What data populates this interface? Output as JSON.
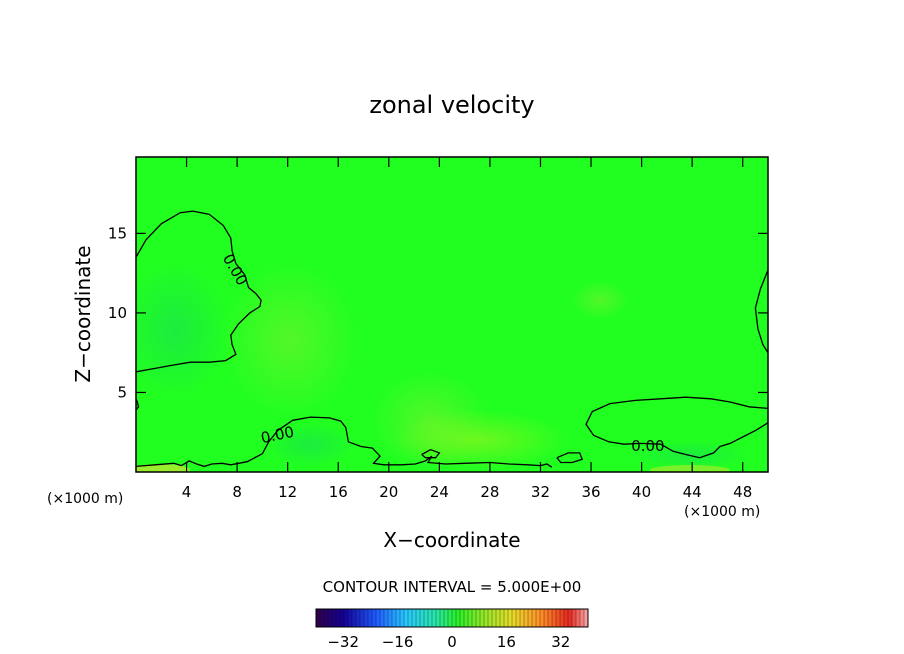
{
  "chart_data": {
    "type": "heatmap",
    "title": "zonal velocity",
    "xlabel": "X−coordinate",
    "ylabel": "Z−coordinate",
    "x_unit_left": "(×1000 m)",
    "x_unit_right": "(×1000 m)",
    "xlim": [
      0,
      50
    ],
    "ylim": [
      0,
      19.8
    ],
    "x_ticks": [
      4,
      8,
      12,
      16,
      20,
      24,
      28,
      32,
      36,
      40,
      44,
      48
    ],
    "y_ticks": [
      5,
      10,
      15
    ],
    "contour_interval_text": "CONTOUR INTERVAL = 5.000E+00",
    "contour_interval": 5.0,
    "colorbar": {
      "min": -40,
      "max": 40,
      "ticks": [
        -32,
        -16,
        0,
        16,
        32
      ],
      "tick_labels": [
        "−32",
        "−16",
        "0",
        "16",
        "32"
      ]
    },
    "background_color": "#20ff20",
    "contour_labels": [
      {
        "text": "0.00",
        "x": 7.8,
        "y": 12.7,
        "rotate": 60
      },
      {
        "text": "0.00",
        "x": 11.2,
        "y": 2.3,
        "rotate": -12
      },
      {
        "text": "0.00",
        "x": 40.5,
        "y": 1.6,
        "rotate": 0
      }
    ],
    "zero_contours": [
      {
        "name": "upper-left",
        "points": [
          [
            0,
            13.5
          ],
          [
            0.8,
            14.6
          ],
          [
            2,
            15.6
          ],
          [
            3.5,
            16.3
          ],
          [
            4.5,
            16.4
          ],
          [
            5.8,
            16.2
          ],
          [
            6.9,
            15.5
          ],
          [
            7.5,
            14.7
          ],
          [
            7.6,
            13.9
          ],
          [
            7.9,
            13.1
          ],
          [
            8.6,
            12.4
          ],
          [
            8.9,
            11.6
          ],
          [
            9.5,
            11.2
          ],
          [
            9.9,
            10.8
          ],
          [
            9.8,
            10.4
          ],
          [
            9.0,
            10.0
          ],
          [
            8.1,
            9.3
          ],
          [
            7.5,
            8.6
          ],
          [
            7.6,
            8.0
          ],
          [
            7.9,
            7.4
          ],
          [
            7.1,
            7.0
          ],
          [
            5.8,
            6.9
          ],
          [
            4.3,
            6.9
          ],
          [
            2.8,
            6.7
          ],
          [
            1.4,
            6.5
          ],
          [
            0,
            6.3
          ]
        ]
      },
      {
        "name": "left-edge-dot",
        "points": [
          [
            0,
            3.9
          ],
          [
            0.2,
            4.1
          ],
          [
            0.1,
            4.4
          ],
          [
            0,
            4.6
          ]
        ]
      },
      {
        "name": "left-bottom",
        "points": [
          [
            0,
            0.35
          ],
          [
            1.5,
            0.45
          ],
          [
            3.0,
            0.55
          ],
          [
            3.6,
            0.4
          ]
        ]
      },
      {
        "name": "mid-bottom",
        "points": [
          [
            3.6,
            0.4
          ],
          [
            4.2,
            0.7
          ],
          [
            4.8,
            0.5
          ],
          [
            5.4,
            0.35
          ],
          [
            6.0,
            0.5
          ],
          [
            6.8,
            0.55
          ],
          [
            7.5,
            0.45
          ],
          [
            8.8,
            0.65
          ],
          [
            10.0,
            1.15
          ],
          [
            10.5,
            1.9
          ],
          [
            11.2,
            2.6
          ],
          [
            12.4,
            3.25
          ],
          [
            13.8,
            3.45
          ],
          [
            15.3,
            3.4
          ],
          [
            16.2,
            3.2
          ],
          [
            16.6,
            2.8
          ],
          [
            16.8,
            1.9
          ],
          [
            17.8,
            1.6
          ],
          [
            18.7,
            1.5
          ],
          [
            19.3,
            1.0
          ],
          [
            18.8,
            0.55
          ],
          [
            19.6,
            0.45
          ],
          [
            21.0,
            0.45
          ],
          [
            22.1,
            0.5
          ],
          [
            22.9,
            0.7
          ],
          [
            23.4,
            1.0
          ],
          [
            23.1,
            0.6
          ],
          [
            24.5,
            0.5
          ],
          [
            26.0,
            0.55
          ],
          [
            28.0,
            0.6
          ],
          [
            29.5,
            0.5
          ],
          [
            31.0,
            0.45
          ],
          [
            32.0,
            0.4
          ],
          [
            32.5,
            0.5
          ],
          [
            32.9,
            0.3
          ]
        ]
      },
      {
        "name": "island-24",
        "points": [
          [
            22.6,
            1.1
          ],
          [
            23.3,
            1.4
          ],
          [
            24.0,
            1.2
          ],
          [
            23.7,
            0.9
          ],
          [
            22.9,
            0.9
          ],
          [
            22.6,
            1.1
          ]
        ]
      },
      {
        "name": "island-34",
        "points": [
          [
            33.3,
            0.9
          ],
          [
            34.2,
            1.2
          ],
          [
            35.1,
            1.2
          ],
          [
            35.3,
            0.8
          ],
          [
            34.5,
            0.6
          ],
          [
            33.6,
            0.6
          ],
          [
            33.3,
            0.9
          ]
        ]
      },
      {
        "name": "right-bottom",
        "points": [
          [
            50,
            4.0
          ],
          [
            48.5,
            4.1
          ],
          [
            47.0,
            4.4
          ],
          [
            45.5,
            4.6
          ],
          [
            43.5,
            4.7
          ],
          [
            41.5,
            4.6
          ],
          [
            39.5,
            4.5
          ],
          [
            37.5,
            4.3
          ],
          [
            36.1,
            3.8
          ],
          [
            35.6,
            3.0
          ],
          [
            36.2,
            2.3
          ],
          [
            37.4,
            1.9
          ],
          [
            38.6,
            1.75
          ],
          [
            39.9,
            1.8
          ],
          [
            41.5,
            1.75
          ],
          [
            42.5,
            1.3
          ],
          [
            43.5,
            1.1
          ],
          [
            44.6,
            0.9
          ],
          [
            45.7,
            1.2
          ],
          [
            46.2,
            1.6
          ],
          [
            47.0,
            1.8
          ],
          [
            48.0,
            2.2
          ],
          [
            49.0,
            2.6
          ],
          [
            50,
            3.1
          ]
        ]
      },
      {
        "name": "right-edge",
        "points": [
          [
            50,
            12.7
          ],
          [
            49.4,
            11.5
          ],
          [
            49.0,
            10.3
          ],
          [
            49.2,
            9.0
          ],
          [
            49.6,
            8.0
          ],
          [
            50,
            7.5
          ]
        ]
      }
    ]
  }
}
